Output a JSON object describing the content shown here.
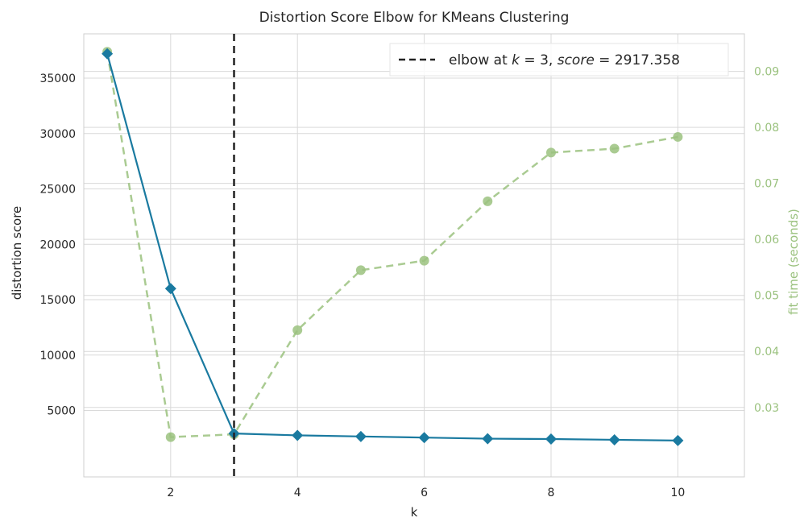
{
  "chart_data": {
    "type": "line",
    "title": "Distortion Score Elbow for KMeans Clustering",
    "xlabel": "k",
    "ylabel": "distortion score",
    "y2label": "fit time (seconds)",
    "x": [
      1,
      2,
      3,
      4,
      5,
      6,
      7,
      8,
      9,
      10
    ],
    "xticks": [
      2,
      4,
      6,
      8,
      10
    ],
    "xlim": [
      0.63,
      11.05
    ],
    "ylim": [
      -1000,
      39000
    ],
    "yticks": [
      5000,
      10000,
      15000,
      20000,
      25000,
      30000,
      35000
    ],
    "y2lim": [
      0.0176,
      0.0967
    ],
    "y2ticks": [
      0.03,
      0.04,
      0.05,
      0.06,
      0.07,
      0.08,
      0.09
    ],
    "series": [
      {
        "name": "distortion score",
        "axis": "left",
        "values": [
          37200,
          16000,
          2917.358,
          2750,
          2650,
          2550,
          2450,
          2420,
          2350,
          2280
        ],
        "color": "#1a7aa0",
        "marker": "diamond",
        "linestyle": "solid"
      },
      {
        "name": "fit time (seconds)",
        "axis": "right",
        "values": [
          0.0935,
          0.0247,
          0.0252,
          0.0438,
          0.0545,
          0.0562,
          0.0668,
          0.0755,
          0.0762,
          0.0783
        ],
        "color": "#9bc27f",
        "marker": "circle",
        "linestyle": "dashed"
      }
    ],
    "elbow": {
      "k": 3,
      "score": 2917.358
    },
    "legend": {
      "placement": "top-right",
      "label_prefix": "elbow at ",
      "label_k": "k",
      "label_eq1": " = 3, ",
      "label_score": "score",
      "label_eq2": " = 2917.358"
    },
    "grid": true,
    "colors": {
      "grid": "#d9d9d9",
      "frame": "#cfcfcf",
      "elbow_line": "#222222",
      "text": "#262626",
      "right_axis_text": "#9bc27f"
    }
  }
}
